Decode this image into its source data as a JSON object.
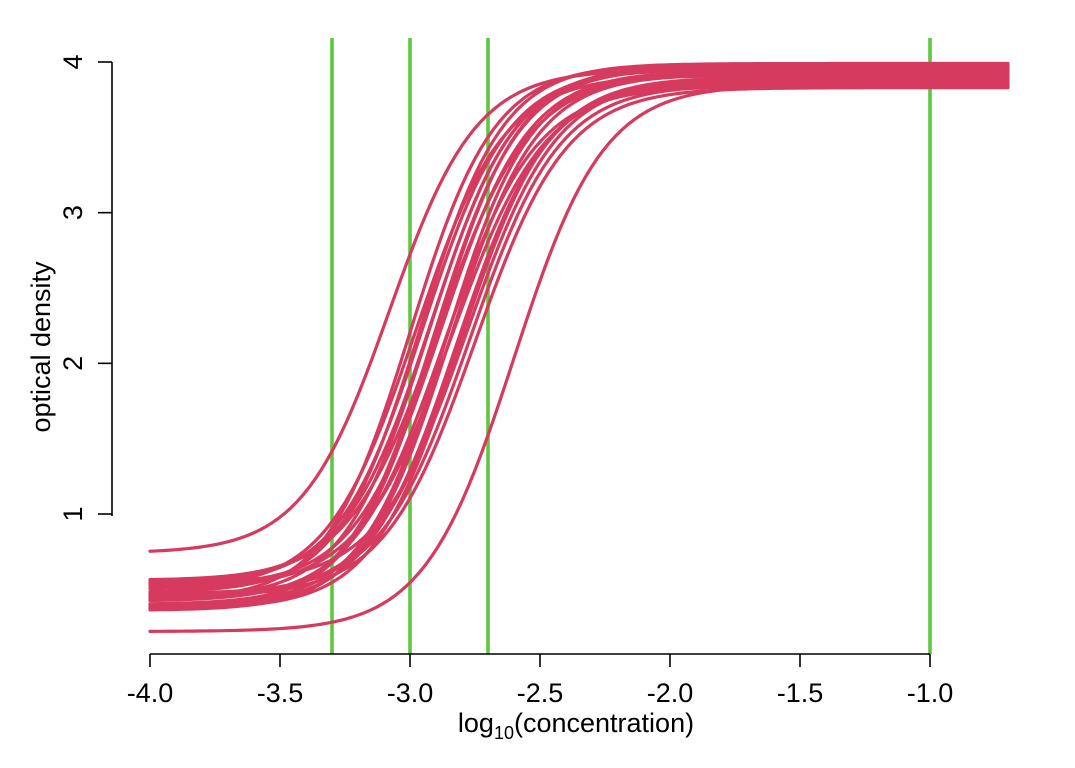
{
  "chart_data": {
    "type": "line",
    "title": "",
    "xlabel_base": "log",
    "xlabel_sub": "10",
    "xlabel_rest": "(concentration)",
    "ylabel": "optical density",
    "xlim": [
      -4.0,
      -0.7
    ],
    "ylim": [
      0.1,
      4.1
    ],
    "x_ticks": [
      -4.0,
      -3.5,
      -3.0,
      -2.5,
      -2.0,
      -1.5,
      -1.0
    ],
    "x_tick_labels": [
      "-4.0",
      "-3.5",
      "-3.0",
      "-2.5",
      "-2.0",
      "-1.5",
      "-1.0"
    ],
    "y_ticks": [
      1,
      2,
      3,
      4
    ],
    "y_tick_labels": [
      "1",
      "2",
      "3",
      "4"
    ],
    "grid": false,
    "curve_color": "#D63A5E",
    "reference_color": "#5DC840",
    "reference_lines_x": [
      -3.3,
      -3.0,
      -2.7,
      -1.0
    ],
    "series": [
      {
        "lower": 0.22,
        "upper": 3.85,
        "midpoint": -2.6,
        "slope": 5.8
      },
      {
        "lower": 0.74,
        "upper": 3.95,
        "midpoint": -3.08,
        "slope": 6.0
      },
      {
        "lower": 0.36,
        "upper": 3.92,
        "midpoint": -2.85,
        "slope": 6.0
      },
      {
        "lower": 0.38,
        "upper": 3.88,
        "midpoint": -2.82,
        "slope": 5.8
      },
      {
        "lower": 0.4,
        "upper": 3.98,
        "midpoint": -2.9,
        "slope": 6.2
      },
      {
        "lower": 0.42,
        "upper": 3.84,
        "midpoint": -2.87,
        "slope": 5.7
      },
      {
        "lower": 0.44,
        "upper": 3.96,
        "midpoint": -2.93,
        "slope": 6.1
      },
      {
        "lower": 0.46,
        "upper": 3.9,
        "midpoint": -2.8,
        "slope": 5.9
      },
      {
        "lower": 0.48,
        "upper": 3.99,
        "midpoint": -2.96,
        "slope": 6.3
      },
      {
        "lower": 0.5,
        "upper": 3.86,
        "midpoint": -2.84,
        "slope": 5.6
      },
      {
        "lower": 0.52,
        "upper": 3.94,
        "midpoint": -2.88,
        "slope": 6.0
      },
      {
        "lower": 0.54,
        "upper": 3.89,
        "midpoint": -2.78,
        "slope": 5.8
      },
      {
        "lower": 0.56,
        "upper": 3.97,
        "midpoint": -2.92,
        "slope": 6.1
      },
      {
        "lower": 0.45,
        "upper": 3.83,
        "midpoint": -2.75,
        "slope": 5.7
      },
      {
        "lower": 0.4,
        "upper": 3.93,
        "midpoint": -2.86,
        "slope": 6.2
      },
      {
        "lower": 0.5,
        "upper": 3.91,
        "midpoint": -2.98,
        "slope": 5.9
      },
      {
        "lower": 0.37,
        "upper": 3.87,
        "midpoint": -2.81,
        "slope": 6.0
      },
      {
        "lower": 0.53,
        "upper": 3.95,
        "midpoint": -2.95,
        "slope": 6.1
      },
      {
        "lower": 0.43,
        "upper": 3.98,
        "midpoint": -3.0,
        "slope": 6.2
      },
      {
        "lower": 0.47,
        "upper": 3.85,
        "midpoint": -2.77,
        "slope": 5.8
      },
      {
        "lower": 0.55,
        "upper": 3.92,
        "midpoint": -2.89,
        "slope": 5.7
      },
      {
        "lower": 0.39,
        "upper": 3.96,
        "midpoint": -2.91,
        "slope": 6.1
      }
    ]
  }
}
